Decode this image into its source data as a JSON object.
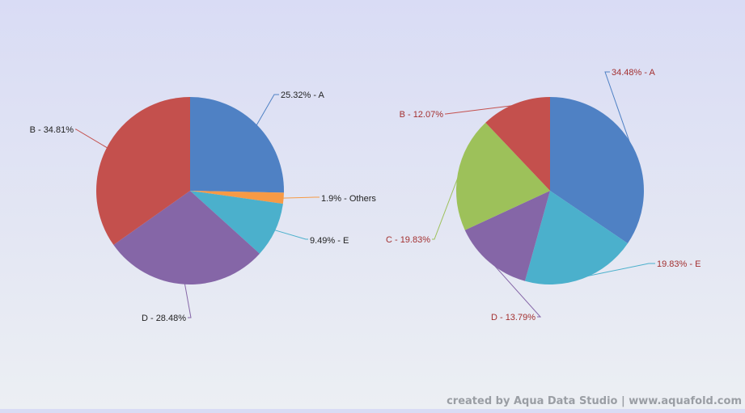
{
  "colors": {
    "A": "#4f81c4",
    "B": "#c4504d",
    "C": "#9dc15a",
    "D": "#8566a7",
    "E": "#4bb0cc",
    "Others": "#f79a45"
  },
  "chart_data": [
    {
      "type": "pie",
      "slices": [
        {
          "name": "A",
          "value": 25.32,
          "label": "25.32% - A",
          "color": "#4f81c4",
          "label_color": "#222222"
        },
        {
          "name": "Others",
          "value": 1.9,
          "label": "1.9% - Others",
          "color": "#f79a45",
          "label_color": "#222222"
        },
        {
          "name": "E",
          "value": 9.49,
          "label": "9.49% - E",
          "color": "#4bb0cc",
          "label_color": "#222222"
        },
        {
          "name": "D",
          "value": 28.48,
          "label": "D - 28.48%",
          "color": "#8566a7",
          "label_color": "#222222"
        },
        {
          "name": "B",
          "value": 34.81,
          "label": "B - 34.81%",
          "color": "#c4504d",
          "label_color": "#222222"
        }
      ]
    },
    {
      "type": "pie",
      "slices": [
        {
          "name": "A",
          "value": 34.48,
          "label": "34.48% - A",
          "color": "#4f81c4",
          "label_color": "#a33030"
        },
        {
          "name": "E",
          "value": 19.83,
          "label": "19.83% - E",
          "color": "#4bb0cc",
          "label_color": "#a33030"
        },
        {
          "name": "D",
          "value": 13.79,
          "label": "D - 13.79%",
          "color": "#8566a7",
          "label_color": "#a33030"
        },
        {
          "name": "C",
          "value": 19.83,
          "label": "C - 19.83%",
          "color": "#9dc15a",
          "label_color": "#a33030"
        },
        {
          "name": "B",
          "value": 12.07,
          "label": "B - 12.07%",
          "color": "#c4504d",
          "label_color": "#a33030"
        }
      ]
    }
  ],
  "footer": "created by Aqua Data Studio | www.aquafold.com"
}
